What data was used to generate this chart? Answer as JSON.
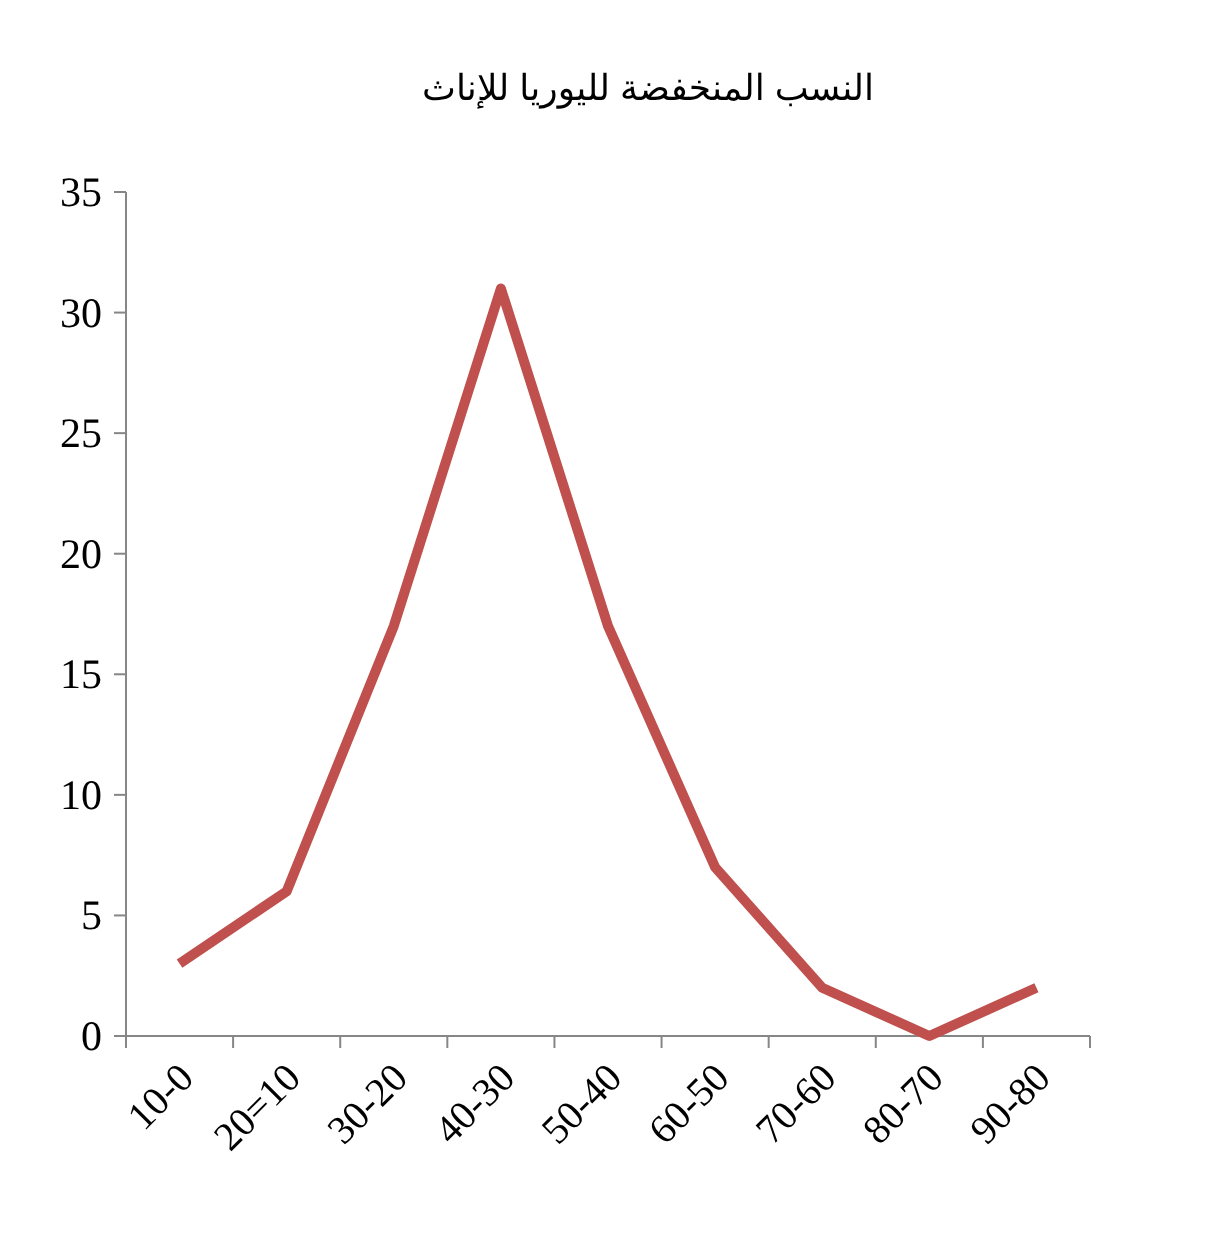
{
  "chart_data": {
    "type": "line",
    "title": "النسب المنخفضة لليوريا للإناث",
    "categories": [
      "10-0",
      "20=10",
      "30-20",
      "40-30",
      "50-40",
      "60-50",
      "70-60",
      "80-70",
      "90-80"
    ],
    "values": [
      3,
      6,
      17,
      31,
      17,
      7,
      2,
      0,
      2
    ],
    "color": "#c0504d",
    "ylim": [
      0,
      35
    ],
    "yticks": [
      0,
      5,
      10,
      15,
      20,
      25,
      30,
      35
    ]
  }
}
